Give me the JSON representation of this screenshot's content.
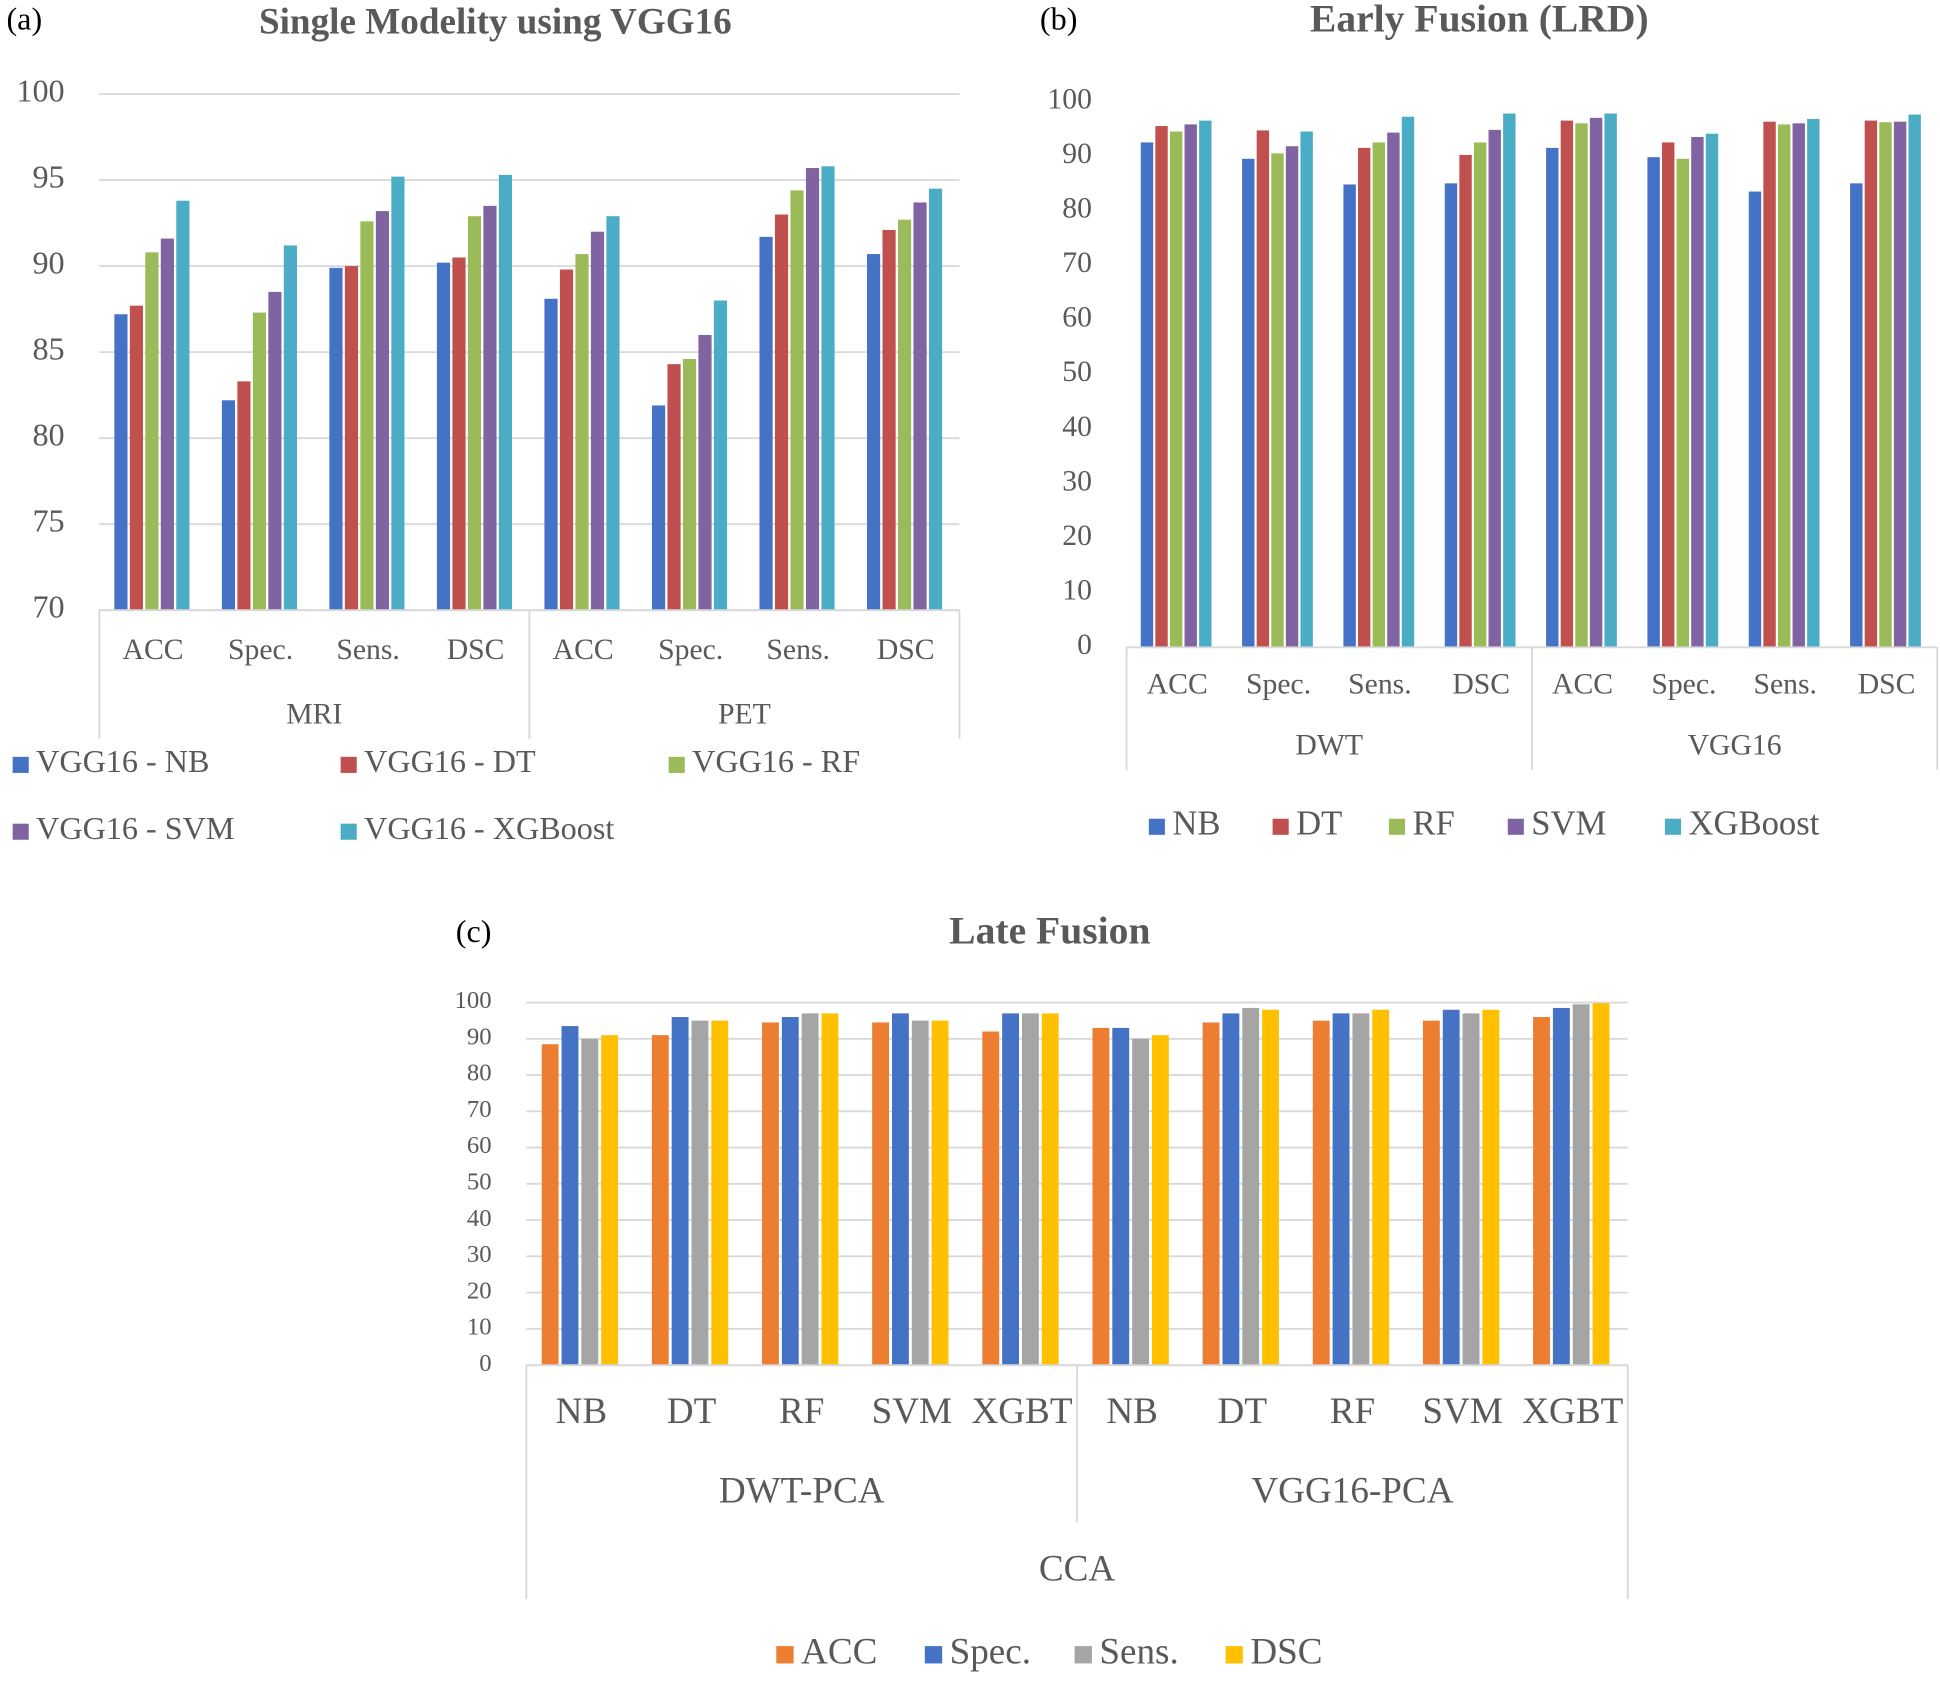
{
  "chart_data": [
    {
      "type": "bar",
      "label": "(a)",
      "title": "Single Modelity using VGG16",
      "categories": [
        "ACC",
        "Spec.",
        "Sens.",
        "DSC",
        "ACC",
        "Spec.",
        "Sens.",
        "DSC"
      ],
      "groups": [
        "MRI",
        "PET"
      ],
      "ylim": [
        70,
        100
      ],
      "yticks": [
        70,
        75,
        80,
        85,
        90,
        95,
        100
      ],
      "grid": true,
      "legend": "bottom",
      "series": [
        {
          "name": "VGG16 - NB",
          "color": "#4472c4",
          "values": [
            87.2,
            82.2,
            89.9,
            90.2,
            88.1,
            81.9,
            91.7,
            90.7
          ]
        },
        {
          "name": "VGG16 - DT",
          "color": "#c0504d",
          "values": [
            87.7,
            83.3,
            90.0,
            90.5,
            89.8,
            84.3,
            93.0,
            92.1
          ]
        },
        {
          "name": "VGG16 - RF",
          "color": "#9bbb59",
          "values": [
            90.8,
            87.3,
            92.6,
            92.9,
            90.7,
            84.6,
            94.4,
            92.7
          ]
        },
        {
          "name": "VGG16 - SVM",
          "color": "#8064a2",
          "values": [
            91.6,
            88.5,
            93.2,
            93.5,
            92.0,
            86.0,
            95.7,
            93.7
          ]
        },
        {
          "name": "VGG16 - XGBoost",
          "color": "#4bacc6",
          "values": [
            93.8,
            91.2,
            95.2,
            95.3,
            92.9,
            88.0,
            95.8,
            94.5
          ]
        }
      ]
    },
    {
      "type": "bar",
      "label": "(b)",
      "title": "Early Fusion (LRD)",
      "categories": [
        "ACC",
        "Spec.",
        "Sens.",
        "DSC",
        "ACC",
        "Spec.",
        "Sens.",
        "DSC"
      ],
      "groups": [
        "DWT",
        "VGG16"
      ],
      "ylim": [
        0,
        100
      ],
      "yticks": [
        0,
        10,
        20,
        30,
        40,
        50,
        60,
        70,
        80,
        90,
        100
      ],
      "grid": false,
      "legend": "bottom",
      "series": [
        {
          "name": "NB",
          "color": "#4472c4",
          "values": [
            92.5,
            89.5,
            84.8,
            85.0,
            91.5,
            89.8,
            83.5,
            85.0
          ]
        },
        {
          "name": "DT",
          "color": "#c0504d",
          "values": [
            95.5,
            94.7,
            91.5,
            90.2,
            96.5,
            92.5,
            96.3,
            96.5
          ]
        },
        {
          "name": "RF",
          "color": "#9bbb59",
          "values": [
            94.5,
            90.5,
            92.5,
            92.5,
            96.0,
            89.5,
            95.8,
            96.2
          ]
        },
        {
          "name": "SVM",
          "color": "#8064a2",
          "values": [
            95.8,
            91.8,
            94.3,
            94.8,
            97.0,
            93.5,
            96.0,
            96.3
          ]
        },
        {
          "name": "XGBoost",
          "color": "#4bacc6",
          "values": [
            96.5,
            94.5,
            97.2,
            97.8,
            97.8,
            94.1,
            96.8,
            97.6
          ]
        }
      ]
    },
    {
      "type": "bar",
      "label": "(c)",
      "title": "Late Fusion",
      "categories": [
        "NB",
        "DT",
        "RF",
        "SVM",
        "XGBT",
        "NB",
        "DT",
        "RF",
        "SVM",
        "XGBT"
      ],
      "groups": [
        "DWT-PCA",
        "VGG16-PCA"
      ],
      "outer_groups": [
        "CCA"
      ],
      "ylim": [
        0,
        100
      ],
      "yticks": [
        0,
        10,
        20,
        30,
        40,
        50,
        60,
        70,
        80,
        90,
        100
      ],
      "grid": true,
      "legend": "bottom",
      "series": [
        {
          "name": "ACC",
          "color": "#ed7d31",
          "values": [
            88.5,
            91.0,
            94.5,
            94.5,
            92.0,
            93.0,
            94.5,
            95.0,
            95.0,
            96.0
          ]
        },
        {
          "name": "Spec.",
          "color": "#4472c4",
          "values": [
            93.5,
            96.0,
            96.0,
            97.0,
            97.0,
            93.0,
            97.0,
            97.0,
            98.0,
            98.5
          ]
        },
        {
          "name": "Sens.",
          "color": "#a5a5a5",
          "values": [
            90.0,
            95.0,
            97.0,
            95.0,
            97.0,
            90.0,
            98.5,
            97.0,
            97.0,
            99.5
          ]
        },
        {
          "name": "DSC",
          "color": "#ffc000",
          "values": [
            91.0,
            95.0,
            97.0,
            95.0,
            97.0,
            91.0,
            98.0,
            98.0,
            98.0,
            99.8
          ]
        }
      ]
    }
  ]
}
